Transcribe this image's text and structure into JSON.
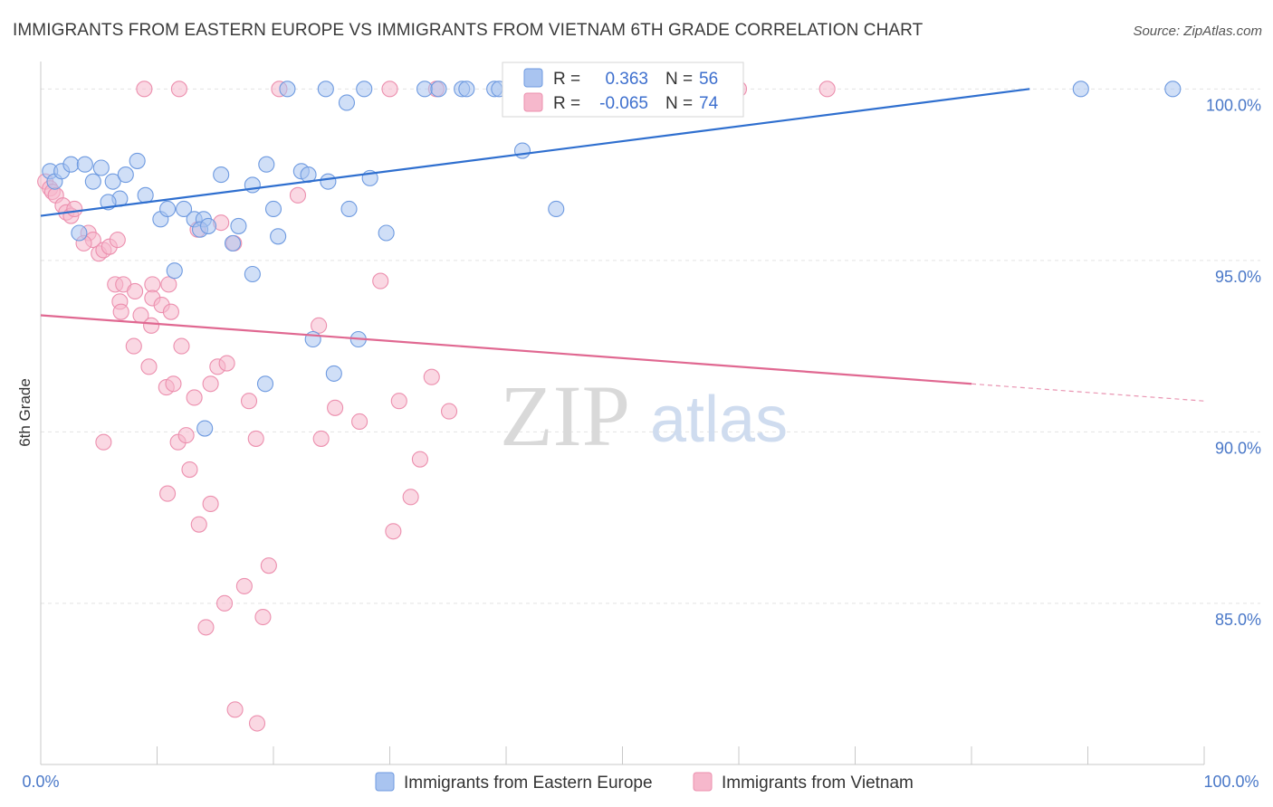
{
  "title": "IMMIGRANTS FROM EASTERN EUROPE VS IMMIGRANTS FROM VIETNAM 6TH GRADE CORRELATION CHART",
  "source": "Source: ZipAtlas.com",
  "watermark": {
    "zip": "ZIP",
    "atlas": "atlas"
  },
  "stats": {
    "r_label": "R =",
    "n_label": "N =",
    "blue": {
      "r": "0.363",
      "n": "56"
    },
    "pink": {
      "r": "-0.065",
      "n": "74"
    }
  },
  "legend": {
    "blue": "Immigrants from Eastern Europe",
    "pink": "Immigrants from Vietnam"
  },
  "colors": {
    "blue_fill": "#a9c4f0",
    "blue_stroke": "#6e9ae0",
    "blue_line": "#2f6fcf",
    "pink_fill": "#f6b8cc",
    "pink_stroke": "#ec8fae",
    "pink_line": "#e06891",
    "tick_text": "#4a78c8",
    "grid": "#e3e3e3"
  },
  "chart_data": {
    "type": "scatter",
    "title": "IMMIGRANTS FROM EASTERN EUROPE VS IMMIGRANTS FROM VIETNAM 6TH GRADE CORRELATION CHART",
    "xlabel": "",
    "ylabel": "6th Grade",
    "xlim": [
      0,
      100
    ],
    "ylim": [
      80.3,
      100.8
    ],
    "x_tick_labels": [
      "0.0%",
      "100.0%"
    ],
    "y_ticks": [
      85,
      90,
      95,
      100
    ],
    "y_tick_labels": [
      "85.0%",
      "90.0%",
      "95.0%",
      "100.0%"
    ],
    "grid": true,
    "legend_position": "bottom",
    "series": [
      {
        "name": "Immigrants from Eastern Europe",
        "color": "#a9c4f0",
        "trend": {
          "x": [
            0,
            85
          ],
          "y": [
            96.3,
            100.0
          ]
        },
        "points": [
          [
            0.8,
            97.6
          ],
          [
            1.2,
            97.3
          ],
          [
            1.8,
            97.6
          ],
          [
            2.6,
            97.8
          ],
          [
            3.8,
            97.8
          ],
          [
            4.5,
            97.3
          ],
          [
            5.2,
            97.7
          ],
          [
            6.2,
            97.3
          ],
          [
            7.3,
            97.5
          ],
          [
            6.8,
            96.8
          ],
          [
            5.8,
            96.7
          ],
          [
            3.3,
            95.8
          ],
          [
            8.3,
            97.9
          ],
          [
            9.0,
            96.9
          ],
          [
            10.3,
            96.2
          ],
          [
            10.9,
            96.5
          ],
          [
            12.3,
            96.5
          ],
          [
            13.2,
            96.2
          ],
          [
            14.0,
            96.2
          ],
          [
            13.7,
            95.9
          ],
          [
            14.4,
            96.0
          ],
          [
            15.5,
            97.5
          ],
          [
            16.5,
            95.5
          ],
          [
            17.0,
            96.0
          ],
          [
            18.2,
            97.2
          ],
          [
            19.4,
            97.8
          ],
          [
            20.0,
            96.5
          ],
          [
            20.4,
            95.7
          ],
          [
            22.4,
            97.6
          ],
          [
            23.0,
            97.5
          ],
          [
            24.7,
            97.3
          ],
          [
            26.5,
            96.5
          ],
          [
            28.3,
            97.4
          ],
          [
            29.7,
            95.8
          ],
          [
            11.5,
            94.7
          ],
          [
            18.2,
            94.6
          ],
          [
            23.4,
            92.7
          ],
          [
            25.2,
            91.7
          ],
          [
            33.0,
            100.0
          ],
          [
            34.2,
            100.0
          ],
          [
            36.2,
            100.0
          ],
          [
            36.6,
            100.0
          ],
          [
            39.0,
            100.0
          ],
          [
            39.4,
            100.0
          ],
          [
            41.8,
            100.0
          ],
          [
            21.2,
            100.0
          ],
          [
            24.5,
            100.0
          ],
          [
            26.3,
            99.6
          ],
          [
            27.8,
            100.0
          ],
          [
            41.4,
            98.2
          ],
          [
            44.3,
            96.5
          ],
          [
            27.3,
            92.7
          ],
          [
            19.3,
            91.4
          ],
          [
            14.1,
            90.1
          ],
          [
            89.4,
            100.0
          ],
          [
            97.3,
            100.0
          ]
        ]
      },
      {
        "name": "Immigrants from Vietnam",
        "color": "#f6b8cc",
        "trend": {
          "x": [
            0,
            80
          ],
          "y": [
            93.4,
            91.4
          ],
          "dashed_to": {
            "x": 100,
            "y": 90.9
          }
        },
        "points": [
          [
            0.4,
            97.3
          ],
          [
            0.8,
            97.1
          ],
          [
            1.0,
            97.0
          ],
          [
            1.3,
            96.9
          ],
          [
            1.9,
            96.6
          ],
          [
            2.2,
            96.4
          ],
          [
            2.6,
            96.3
          ],
          [
            2.9,
            96.5
          ],
          [
            4.1,
            95.8
          ],
          [
            4.5,
            95.6
          ],
          [
            5.0,
            95.2
          ],
          [
            5.4,
            95.3
          ],
          [
            5.9,
            95.4
          ],
          [
            3.7,
            95.5
          ],
          [
            6.6,
            95.6
          ],
          [
            6.4,
            94.3
          ],
          [
            7.1,
            94.3
          ],
          [
            8.1,
            94.1
          ],
          [
            9.6,
            94.3
          ],
          [
            11.0,
            94.3
          ],
          [
            6.8,
            93.8
          ],
          [
            6.9,
            93.5
          ],
          [
            8.6,
            93.4
          ],
          [
            9.6,
            93.9
          ],
          [
            10.4,
            93.7
          ],
          [
            11.2,
            93.5
          ],
          [
            9.5,
            93.1
          ],
          [
            12.1,
            92.5
          ],
          [
            8.0,
            92.5
          ],
          [
            9.3,
            91.9
          ],
          [
            10.8,
            91.3
          ],
          [
            11.4,
            91.4
          ],
          [
            13.2,
            91.0
          ],
          [
            14.6,
            91.4
          ],
          [
            15.2,
            91.9
          ],
          [
            17.9,
            90.9
          ],
          [
            16.0,
            92.0
          ],
          [
            5.4,
            89.7
          ],
          [
            11.8,
            89.7
          ],
          [
            12.5,
            89.9
          ],
          [
            18.5,
            89.8
          ],
          [
            24.1,
            89.8
          ],
          [
            10.9,
            88.2
          ],
          [
            13.6,
            87.3
          ],
          [
            14.6,
            87.9
          ],
          [
            12.8,
            88.9
          ],
          [
            17.5,
            85.5
          ],
          [
            19.6,
            86.1
          ],
          [
            14.2,
            84.3
          ],
          [
            15.8,
            85.0
          ],
          [
            19.1,
            84.6
          ],
          [
            16.7,
            81.9
          ],
          [
            18.6,
            81.5
          ],
          [
            13.5,
            95.9
          ],
          [
            16.6,
            95.5
          ],
          [
            15.5,
            96.1
          ],
          [
            22.1,
            96.9
          ],
          [
            23.9,
            93.1
          ],
          [
            25.3,
            90.7
          ],
          [
            27.4,
            90.3
          ],
          [
            30.8,
            90.9
          ],
          [
            32.6,
            89.2
          ],
          [
            30.3,
            87.1
          ],
          [
            31.8,
            88.1
          ],
          [
            33.6,
            91.6
          ],
          [
            35.1,
            90.6
          ],
          [
            29.2,
            94.4
          ],
          [
            8.9,
            100.0
          ],
          [
            11.9,
            100.0
          ],
          [
            20.5,
            100.0
          ],
          [
            30.0,
            100.0
          ],
          [
            34.0,
            100.0
          ],
          [
            67.6,
            100.0
          ],
          [
            60.0,
            100.0
          ]
        ]
      }
    ]
  }
}
